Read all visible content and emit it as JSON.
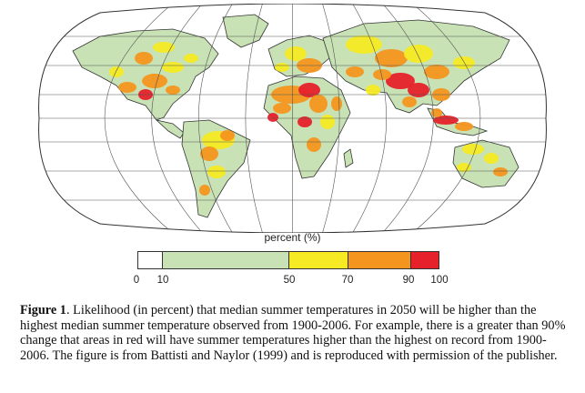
{
  "legend": {
    "title": "percent (%)",
    "ticks": [
      "0",
      "10",
      "50",
      "70",
      "90",
      "100"
    ],
    "tick_values": [
      0,
      10,
      50,
      70,
      90,
      100
    ],
    "segments": [
      {
        "from": 0,
        "to": 10,
        "color": "#ffffff"
      },
      {
        "from": 10,
        "to": 50,
        "color": "#c8e2b5"
      },
      {
        "from": 50,
        "to": 70,
        "color": "#f5ea24"
      },
      {
        "from": 70,
        "to": 90,
        "color": "#f4951f"
      },
      {
        "from": 90,
        "to": 100,
        "color": "#e7212b"
      }
    ]
  },
  "caption": {
    "label": "Figure 1",
    "text": ". Likelihood (in percent) that median summer temperatures in 2050 will be higher than the highest median summer temperature observed from 1900-2006.  For example, there is a greater than 90% change that areas in red will have summer temperatures higher than the highest on record from 1900-2006. The figure is from Battisti and Naylor (1999) and is reproduced with permission of the publisher."
  },
  "colors": {
    "land_base": "#c8e2b5",
    "yellow": "#f5ea24",
    "orange": "#f4951f",
    "red": "#e7212b",
    "coast": "#333333",
    "graticule": "#555555"
  }
}
